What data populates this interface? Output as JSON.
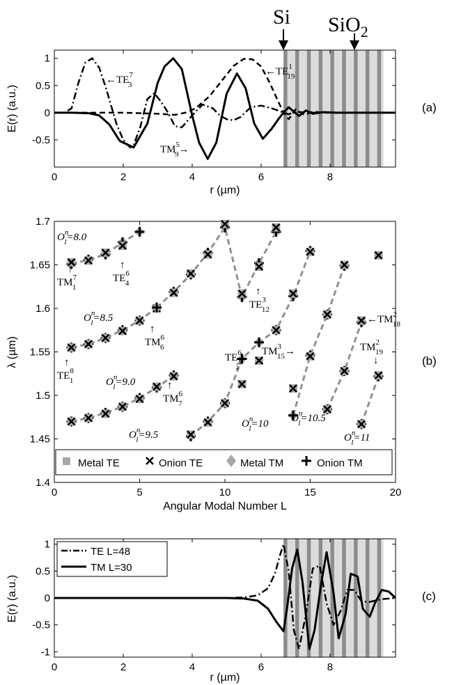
{
  "materials": {
    "si": "Si",
    "sio2_base": "SiO",
    "sio2_sub": "2"
  },
  "colors": {
    "silicon": "#8c8c8c",
    "oxide": "#dcdcdc",
    "marker_gray": "#a8a8a8",
    "dashed": "#909090"
  },
  "chart_data": [
    {
      "id": "a",
      "panel_label": "(a)",
      "type": "line",
      "xlabel": "r (µm)",
      "ylabel": "E(r) (a.u.)",
      "xlim": [
        0,
        9.9
      ],
      "ylim": [
        -1.0,
        1.15
      ],
      "xticks": [
        0,
        2,
        4,
        6,
        8
      ],
      "xtick_labels": [
        "0",
        "2",
        "4",
        "6",
        "8"
      ],
      "yticks": [
        -0.5,
        0,
        0.5,
        1
      ],
      "ytick_labels": [
        "-0.5",
        "0",
        "0.5",
        "1"
      ],
      "cladding": {
        "start": 6.65,
        "end": 9.55,
        "period": 0.34,
        "si_width": 0.11
      },
      "series": [
        {
          "style": "dashdot",
          "x": [
            0,
            0.3,
            0.5,
            0.7,
            0.9,
            1.1,
            1.3,
            1.5,
            1.8,
            2.0,
            2.2,
            2.3,
            2.5,
            2.7,
            2.9,
            3.1,
            3.3,
            3.5,
            3.7,
            4.0,
            4.3,
            4.6,
            4.8,
            5.0,
            5.2,
            5.4,
            5.7,
            6.0,
            6.3,
            6.5,
            6.65,
            6.8,
            7.0,
            7.3,
            7.6,
            8.0
          ],
          "y": [
            0,
            0,
            0.08,
            0.55,
            0.92,
            1.0,
            0.83,
            0.45,
            -0.2,
            -0.5,
            -0.64,
            -0.6,
            -0.25,
            0.25,
            0.36,
            0.2,
            0,
            -0.25,
            -0.27,
            -0.05,
            0.15,
            0.08,
            -0.05,
            -0.12,
            -0.14,
            -0.08,
            0.1,
            0.13,
            0.08,
            0.04,
            0,
            -0.03,
            0.02,
            0,
            0,
            0
          ]
        },
        {
          "style": "solid",
          "x": [
            0,
            0.5,
            1.0,
            1.3,
            1.6,
            1.9,
            2.3,
            2.7,
            3.0,
            3.2,
            3.45,
            3.7,
            4.0,
            4.2,
            4.45,
            4.7,
            5.0,
            5.3,
            5.55,
            5.8,
            6.05,
            6.3,
            6.5,
            6.65,
            6.8,
            6.95,
            7.1,
            7.3,
            7.5,
            7.8,
            8.2,
            9.9
          ],
          "y": [
            0,
            0,
            -0.01,
            -0.05,
            -0.22,
            -0.52,
            -0.64,
            -0.2,
            0.55,
            0.85,
            1.0,
            0.8,
            -0.05,
            -0.55,
            -0.85,
            -0.55,
            0.35,
            0.72,
            0.45,
            -0.2,
            -0.48,
            -0.3,
            -0.12,
            0,
            0.1,
            0.02,
            -0.06,
            0.04,
            -0.02,
            0.01,
            0,
            0
          ]
        },
        {
          "style": "dashed",
          "x": [
            0,
            2.0,
            2.5,
            3.0,
            3.5,
            3.8,
            4.1,
            4.5,
            4.9,
            5.2,
            5.5,
            5.75,
            6.0,
            6.25,
            6.5,
            6.65,
            6.8,
            7.0,
            7.25,
            7.5,
            7.8,
            8.2,
            9.9
          ],
          "y": [
            0,
            0,
            -0.01,
            -0.02,
            -0.04,
            0,
            0.08,
            0.3,
            0.62,
            0.86,
            0.99,
            0.98,
            0.85,
            0.55,
            0.2,
            0,
            -0.12,
            0.06,
            -0.04,
            0.02,
            0,
            0,
            0
          ]
        }
      ],
      "annotations": {
        "te": {
          "base": "TE",
          "sup": "7",
          "sub": "3"
        },
        "tm": {
          "base": "TM",
          "sup": "5",
          "sub": "9"
        },
        "te19": {
          "base": "TE",
          "sup": "1",
          "sub": "19"
        }
      }
    },
    {
      "id": "b",
      "panel_label": "(b)",
      "type": "scatter",
      "xlabel": "Angular Modal Number L",
      "ylabel": "λ (µm)",
      "xlim": [
        0,
        20
      ],
      "ylim": [
        1.4,
        1.7
      ],
      "xticks": [
        0,
        5,
        10,
        15,
        20
      ],
      "xtick_labels": [
        "0",
        "5",
        "10",
        "15",
        "20"
      ],
      "yticks": [
        1.4,
        1.45,
        1.5,
        1.55,
        1.6,
        1.65,
        1.7
      ],
      "ytick_labels": [
        "1.4",
        "1.45",
        "1.5",
        "1.55",
        "1.6",
        "1.65",
        "1.7"
      ],
      "legend": [
        "Metal TE",
        "Onion TE",
        "Metal TM",
        "Onion TM"
      ],
      "series": [
        {
          "kind": "TM",
          "x": [
            1,
            2,
            3,
            4,
            5
          ],
          "y": [
            1.651,
            1.656,
            1.662,
            1.676,
            1.688
          ]
        },
        {
          "kind": "TE",
          "x": [
            1,
            2,
            3,
            4
          ],
          "y": [
            1.653,
            1.655,
            1.664,
            1.672
          ]
        },
        {
          "kind": "TM",
          "x": [
            6,
            7,
            8,
            9,
            10,
            11,
            12,
            13
          ],
          "y": [
            1.601,
            1.619,
            1.639,
            1.664,
            1.693,
            1.613,
            1.652,
            1.688
          ]
        },
        {
          "kind": "TE",
          "x": [
            6,
            7,
            8,
            9,
            10,
            11,
            12,
            13
          ],
          "y": [
            1.6,
            1.618,
            1.64,
            1.662,
            1.697,
            1.617,
            1.648,
            1.693
          ]
        },
        {
          "kind": "TM",
          "x": [
            1,
            2,
            3,
            4,
            5,
            6
          ],
          "y": [
            1.555,
            1.559,
            1.566,
            1.575,
            1.586,
            1.601
          ]
        },
        {
          "kind": "TE",
          "x": [
            1,
            2,
            3,
            4,
            5
          ],
          "y": [
            1.555,
            1.559,
            1.566,
            1.574,
            1.586
          ]
        },
        {
          "kind": "TM",
          "x": [
            1,
            2,
            3,
            4,
            5,
            6,
            7
          ],
          "y": [
            1.47,
            1.474,
            1.48,
            1.487,
            1.497,
            1.509,
            1.523
          ]
        },
        {
          "kind": "TE",
          "x": [
            1,
            2,
            3,
            4,
            5,
            6,
            7
          ],
          "y": [
            1.47,
            1.474,
            1.479,
            1.487,
            1.496,
            1.51,
            1.522
          ]
        },
        {
          "kind": "TM",
          "x": [
            8,
            9,
            10,
            11,
            12,
            13,
            14,
            15
          ],
          "y": [
            1.453,
            1.47,
            1.491,
            1.542,
            1.561,
            1.575,
            1.614,
            1.666
          ]
        },
        {
          "kind": "TE",
          "x": [
            8,
            9,
            10,
            11,
            12,
            13,
            14,
            15
          ],
          "y": [
            1.455,
            1.469,
            1.491,
            1.513,
            1.54,
            1.575,
            1.617,
            1.665
          ]
        },
        {
          "kind": "TM",
          "x": [
            14,
            15,
            16,
            17
          ],
          "y": [
            1.477,
            1.546,
            1.593,
            1.649
          ]
        },
        {
          "kind": "TE",
          "x": [
            14,
            15,
            16,
            17
          ],
          "y": [
            1.508,
            1.545,
            1.593,
            1.65
          ]
        },
        {
          "kind": "TM",
          "x": [
            16,
            17,
            18
          ],
          "y": [
            1.484,
            1.528,
            1.584
          ]
        },
        {
          "kind": "TE",
          "x": [
            16,
            17,
            18
          ],
          "y": [
            1.484,
            1.528,
            1.586
          ]
        },
        {
          "kind": "TM",
          "x": [
            18,
            19
          ],
          "y": [
            1.467,
            1.522
          ]
        },
        {
          "kind": "TE",
          "x": [
            18,
            19,
            19
          ],
          "y": [
            1.467,
            1.523,
            1.661
          ]
        }
      ],
      "extra_points": [
        {
          "x": 12,
          "y": 1.649,
          "kind": "TM"
        },
        {
          "x": 18,
          "y": 1.584,
          "kind": "TM"
        },
        {
          "x": 19,
          "y": 1.661,
          "kind": "TE"
        }
      ],
      "annotations": {
        "ol80": {
          "base": "O",
          "sup": "n",
          "sub": "l",
          "val": "=8.0"
        },
        "ol85": {
          "base": "O",
          "sup": "n",
          "sub": "l",
          "val": "=8.5"
        },
        "ol90": {
          "base": "O",
          "sup": "n",
          "sub": "l",
          "val": "=9.0"
        },
        "ol95": {
          "base": "O",
          "sup": "n",
          "sub": "l",
          "val": "=9.5"
        },
        "ol10": {
          "base": "O",
          "sup": "n",
          "sub": "l",
          "val": "=10"
        },
        "ol105": {
          "base": "O",
          "sup": "n",
          "sub": "l",
          "val": "=10.5"
        },
        "ol11": {
          "base": "O",
          "sup": "n",
          "sub": "l",
          "val": "=11"
        },
        "tm71": {
          "base": "TM",
          "sup": "7",
          "sub": "1"
        },
        "te64": {
          "base": "TE",
          "sup": "6",
          "sub": "4"
        },
        "te312": {
          "base": "TE",
          "sup": "3",
          "sub": "12"
        },
        "tm66": {
          "base": "TM",
          "sup": "6",
          "sub": "6"
        },
        "te81": {
          "base": "TE",
          "sup": "8",
          "sub": "1"
        },
        "tm67": {
          "base": "TM",
          "sup": "6",
          "sub": "7"
        },
        "te64b": {
          "base": "TE",
          "sup": "6",
          "sub": "4"
        },
        "tm315": {
          "base": "TM",
          "sup": "3",
          "sub": "15"
        },
        "tm218": {
          "base": "TM",
          "sup": "2",
          "sub": "18"
        },
        "tm219": {
          "base": "TM",
          "sup": "2",
          "sub": "19"
        }
      }
    },
    {
      "id": "c",
      "panel_label": "(c)",
      "type": "line",
      "xlabel": "r (µm)",
      "ylabel": "E(r) (a.u.)",
      "xlim": [
        0,
        9.9
      ],
      "ylim": [
        -1.1,
        1.1
      ],
      "xticks": [
        0,
        2,
        4,
        6,
        8
      ],
      "xtick_labels": [
        "0",
        "2",
        "4",
        "6",
        "8"
      ],
      "yticks": [
        -1,
        -0.5,
        0,
        0.5,
        1
      ],
      "ytick_labels": [
        "-1",
        "-0.5",
        "0",
        "0.5",
        "1"
      ],
      "cladding": {
        "start": 6.65,
        "end": 9.55,
        "period": 0.34,
        "si_width": 0.11
      },
      "legend": [
        "TE L=48",
        "TM L=30"
      ],
      "series": [
        {
          "name": "TE L=48",
          "style": "dashdot",
          "x": [
            0,
            5.0,
            5.5,
            5.9,
            6.2,
            6.4,
            6.55,
            6.65,
            6.8,
            6.95,
            7.1,
            7.3,
            7.5,
            7.7,
            7.9,
            8.1,
            8.3,
            8.5,
            8.7,
            8.9,
            9.1,
            9.3,
            9.55,
            9.9
          ],
          "y": [
            0,
            0,
            0.01,
            0.05,
            0.18,
            0.45,
            0.8,
            1.0,
            0.5,
            -0.6,
            -0.95,
            -0.3,
            0.55,
            0.6,
            -0.1,
            -0.5,
            -0.25,
            0.15,
            0.15,
            -0.05,
            -0.08,
            -0.05,
            -0.02,
            0
          ]
        },
        {
          "name": "TM L=30",
          "style": "solid",
          "x": [
            0,
            5.0,
            5.5,
            5.9,
            6.2,
            6.45,
            6.65,
            6.75,
            6.9,
            7.05,
            7.2,
            7.4,
            7.55,
            7.75,
            7.9,
            8.1,
            8.25,
            8.45,
            8.6,
            8.8,
            8.95,
            9.15,
            9.3,
            9.5,
            9.7,
            9.9
          ],
          "y": [
            0,
            0,
            -0.01,
            -0.05,
            -0.2,
            -0.45,
            -0.62,
            -0.2,
            0.55,
            0.9,
            0.3,
            -0.95,
            -0.6,
            0.3,
            0.85,
            0.1,
            -0.75,
            -0.3,
            0.45,
            0.4,
            -0.2,
            -0.35,
            -0.1,
            0.15,
            0.12,
            0
          ]
        }
      ]
    }
  ]
}
